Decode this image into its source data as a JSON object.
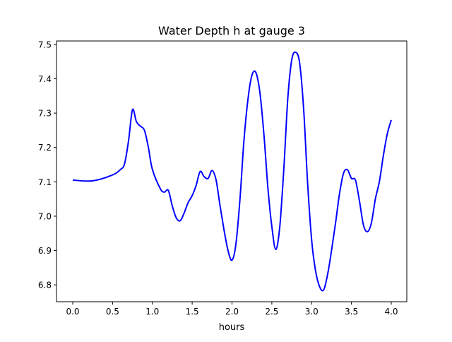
{
  "chart_data": {
    "type": "line",
    "title": "Water Depth h at gauge 3",
    "xlabel": "hours",
    "ylabel": "",
    "xlim": [
      -0.204,
      4.195
    ],
    "ylim": [
      6.751,
      7.51
    ],
    "xticks": [
      0.0,
      0.5,
      1.0,
      1.5,
      2.0,
      2.5,
      3.0,
      3.5,
      4.0
    ],
    "xtick_labels": [
      "0.0",
      "0.5",
      "1.0",
      "1.5",
      "2.0",
      "2.5",
      "3.0",
      "3.5",
      "4.0"
    ],
    "yticks": [
      6.8,
      6.9,
      7.0,
      7.1,
      7.2,
      7.3,
      7.4,
      7.5
    ],
    "ytick_labels": [
      "6.8",
      "6.9",
      "7.0",
      "7.1",
      "7.2",
      "7.3",
      "7.4",
      "7.5"
    ],
    "grid": false,
    "series": [
      {
        "name": "h",
        "color": "#0000ff",
        "x": [
          0.0,
          0.25,
          0.5,
          0.6,
          0.65,
          0.7,
          0.75,
          0.8,
          0.85,
          0.9,
          0.95,
          1.0,
          1.1,
          1.15,
          1.2,
          1.25,
          1.3,
          1.35,
          1.4,
          1.45,
          1.5,
          1.55,
          1.6,
          1.65,
          1.7,
          1.75,
          1.8,
          1.85,
          1.9,
          1.95,
          2.0,
          2.05,
          2.1,
          2.15,
          2.2,
          2.25,
          2.3,
          2.35,
          2.4,
          2.45,
          2.5,
          2.55,
          2.6,
          2.65,
          2.7,
          2.75,
          2.8,
          2.85,
          2.9,
          2.95,
          3.0,
          3.05,
          3.1,
          3.15,
          3.2,
          3.25,
          3.3,
          3.35,
          3.4,
          3.45,
          3.5,
          3.55,
          3.6,
          3.65,
          3.7,
          3.75,
          3.8,
          3.85,
          3.9,
          3.95,
          4.0
        ],
        "y": [
          7.105,
          7.103,
          7.12,
          7.136,
          7.152,
          7.218,
          7.31,
          7.275,
          7.262,
          7.25,
          7.2,
          7.136,
          7.08,
          7.07,
          7.075,
          7.03,
          6.995,
          6.987,
          7.01,
          7.04,
          7.06,
          7.09,
          7.13,
          7.115,
          7.11,
          7.133,
          7.105,
          7.03,
          6.96,
          6.9,
          6.872,
          6.92,
          7.05,
          7.22,
          7.34,
          7.41,
          7.418,
          7.36,
          7.24,
          7.085,
          6.97,
          6.903,
          6.97,
          7.135,
          7.34,
          7.455,
          7.477,
          7.445,
          7.31,
          7.095,
          6.93,
          6.84,
          6.795,
          6.785,
          6.83,
          6.9,
          6.98,
          7.065,
          7.125,
          7.135,
          7.11,
          7.105,
          7.045,
          6.975,
          6.955,
          6.98,
          7.05,
          7.1,
          7.175,
          7.24,
          7.28
        ]
      }
    ]
  }
}
